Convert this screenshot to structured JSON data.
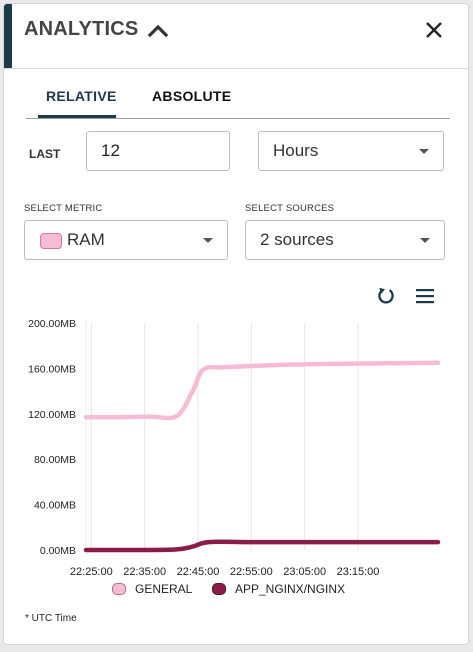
{
  "panel": {
    "title": "ANALYTICS",
    "collapse_icon": "chevron-up-icon",
    "close_icon": "close-icon"
  },
  "tabs": [
    {
      "label": "RELATIVE",
      "active": true
    },
    {
      "label": "ABSOLUTE",
      "active": false
    }
  ],
  "range": {
    "last_label": "LAST",
    "last_value": "12",
    "unit_value": "Hours"
  },
  "metric": {
    "label": "SELECT METRIC",
    "value": "RAM",
    "swatch_color": "#f8bbd6"
  },
  "sources": {
    "label": "SELECT SOURCES",
    "value": "2 sources"
  },
  "toolbar": {
    "reset_icon": "reset-zoom-icon",
    "menu_icon": "hamburger-menu-icon"
  },
  "chart_data": {
    "type": "line",
    "title": "",
    "xlabel": "",
    "ylabel": "",
    "x_ticks": [
      "22:25:00",
      "22:35:00",
      "22:45:00",
      "22:55:00",
      "23:05:00",
      "23:15:00"
    ],
    "y_ticks": [
      "0.00MB",
      "40.00MB",
      "80.00MB",
      "120.00MB",
      "160.00MB",
      "200.00MB"
    ],
    "ylim": [
      0,
      200
    ],
    "x_range": [
      "22:24:00",
      "23:30:00"
    ],
    "grid": "vertical",
    "legend_position": "bottom",
    "series": [
      {
        "name": "GENERAL",
        "color": "#f8bbd6",
        "x": [
          "22:24:00",
          "22:30:00",
          "22:36:00",
          "22:41:00",
          "22:44:00",
          "22:46:00",
          "22:50:00",
          "23:00:00",
          "23:10:00",
          "23:20:00",
          "23:30:00"
        ],
        "values": [
          117,
          117,
          117.5,
          118,
          140,
          159,
          161,
          163,
          164,
          164.5,
          165
        ]
      },
      {
        "name": "APP_NGINX/NGINX",
        "color": "#8b1c4a",
        "x": [
          "22:24:00",
          "22:35:00",
          "22:41:00",
          "22:44:00",
          "22:47:00",
          "22:55:00",
          "23:10:00",
          "23:30:00"
        ],
        "values": [
          0,
          0,
          0.5,
          3,
          7,
          7,
          7,
          7
        ]
      }
    ]
  },
  "legend": {
    "items": [
      {
        "label": "GENERAL",
        "color": "#f8bbd6"
      },
      {
        "label": "APP_NGINX/NGINX",
        "color": "#8b1c4a"
      }
    ]
  },
  "footnote": "* UTC Time"
}
